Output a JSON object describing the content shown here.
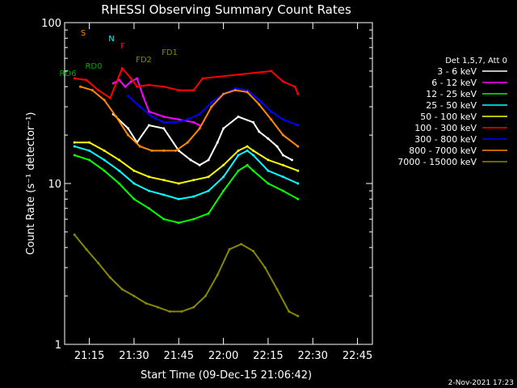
{
  "chart_data": {
    "type": "line",
    "title": "RHESSI Observing Summary Count Rates",
    "xlabel": "Start Time (09-Dec-15 21:06:42)",
    "ylabel": "Count Rate (s⁻¹ detector⁻¹)",
    "yscale": "log",
    "ylim": [
      1,
      100
    ],
    "xlim_minutes": [
      6.7,
      110
    ],
    "x_tick_labels": [
      "21:15",
      "21:30",
      "21:45",
      "22:00",
      "22:15",
      "22:30",
      "22:45"
    ],
    "x_ticks_minutes": [
      15,
      30,
      45,
      60,
      75,
      90,
      105
    ],
    "y_tick_labels": [
      "1",
      "10",
      "100"
    ],
    "y_ticks": [
      1,
      10,
      100
    ],
    "grid": false,
    "legend_title": "Det 1,5,7, Att 0",
    "legend_placement": "right",
    "series": [
      {
        "name": "3 - 6 keV",
        "color": "#ffffff",
        "x": [
          23,
          28,
          31,
          35,
          40,
          45,
          49,
          52,
          55,
          58,
          60,
          65,
          70,
          72,
          75,
          78,
          80,
          83
        ],
        "y": [
          27,
          22,
          18,
          23,
          22,
          16,
          14,
          13,
          14,
          18,
          22,
          26,
          24,
          21,
          19,
          17,
          15,
          14
        ]
      },
      {
        "name": "6 - 12 keV",
        "color": "#ff00ff",
        "x": [
          23,
          25,
          27,
          29,
          31,
          33,
          35,
          40,
          45,
          50,
          52
        ],
        "y": [
          42,
          44,
          40,
          43,
          45,
          35,
          28,
          26,
          25,
          24,
          23
        ]
      },
      {
        "name": "12 - 25 keV",
        "color": "#00ff00",
        "x": [
          10,
          15,
          20,
          25,
          30,
          35,
          40,
          45,
          50,
          55,
          60,
          65,
          68,
          70,
          75,
          80,
          85
        ],
        "y": [
          15,
          14,
          12,
          10,
          8,
          7,
          6,
          5.7,
          6,
          6.5,
          9,
          12,
          13,
          12,
          10,
          9,
          8
        ]
      },
      {
        "name": "25 - 50 keV",
        "color": "#00ffff",
        "x": [
          10,
          15,
          20,
          25,
          30,
          35,
          40,
          45,
          50,
          55,
          60,
          65,
          68,
          70,
          75,
          80,
          85
        ],
        "y": [
          17,
          16,
          14,
          12,
          10,
          9,
          8.5,
          8,
          8.3,
          9,
          11,
          15,
          16,
          15,
          12,
          11,
          10
        ]
      },
      {
        "name": "50 - 100 keV",
        "color": "#ffff00",
        "x": [
          10,
          15,
          20,
          25,
          30,
          35,
          40,
          45,
          50,
          55,
          60,
          65,
          68,
          70,
          75,
          80,
          85
        ],
        "y": [
          18,
          18,
          16,
          14,
          12,
          11,
          10.5,
          10,
          10.5,
          11,
          13,
          16,
          17,
          16,
          14,
          13,
          12
        ]
      },
      {
        "name": "100 - 300 keV",
        "color": "#ff0000",
        "x": [
          10,
          14,
          18,
          22,
          26,
          29,
          31,
          35,
          40,
          45,
          50,
          53,
          76,
          80,
          84,
          85
        ],
        "y": [
          45,
          44,
          38,
          34,
          52,
          45,
          40,
          41,
          40,
          38,
          38,
          45,
          50,
          43,
          40,
          36
        ]
      },
      {
        "name": "300 - 800 keV",
        "color": "#0000ff",
        "x": [
          28,
          32,
          36,
          40,
          44,
          48,
          52,
          56,
          60,
          64,
          68,
          72,
          76,
          80,
          85
        ],
        "y": [
          35,
          30,
          26,
          24,
          24,
          25,
          27,
          32,
          36,
          39,
          38,
          33,
          28,
          25,
          23
        ]
      },
      {
        "name": "800 - 7000 keV",
        "color": "#ff8800",
        "x": [
          12,
          16,
          20,
          24,
          28,
          32,
          36,
          40,
          44,
          48,
          52,
          56,
          60,
          64,
          68,
          72,
          76,
          80,
          85
        ],
        "y": [
          40,
          38,
          33,
          26,
          20,
          17,
          16,
          16,
          16,
          18,
          22,
          30,
          36,
          38,
          37,
          31,
          25,
          20,
          17
        ]
      },
      {
        "name": "7000 - 15000 keV",
        "color": "#888800",
        "x": [
          10,
          14,
          18,
          22,
          26,
          30,
          34,
          38,
          42,
          46,
          50,
          54,
          58,
          62,
          66,
          70,
          74,
          78,
          82,
          85
        ],
        "y": [
          4.8,
          3.9,
          3.2,
          2.6,
          2.2,
          2.0,
          1.8,
          1.7,
          1.6,
          1.6,
          1.7,
          2.0,
          2.7,
          3.9,
          4.2,
          3.8,
          3.0,
          2.2,
          1.6,
          1.5
        ]
      }
    ],
    "flags": [
      {
        "label": "S",
        "color": "#ff8800"
      },
      {
        "label": "N",
        "color": "#00ffff"
      },
      {
        "label": "F",
        "color": "#ff0000"
      },
      {
        "label": "FD1",
        "color": "#888800"
      },
      {
        "label": "FD2",
        "color": "#888800"
      },
      {
        "label": "RD0",
        "color": "#00aa00"
      },
      {
        "label": "RD6",
        "color": "#00aa00"
      }
    ],
    "footer": "2-Nov-2021 17:23"
  }
}
